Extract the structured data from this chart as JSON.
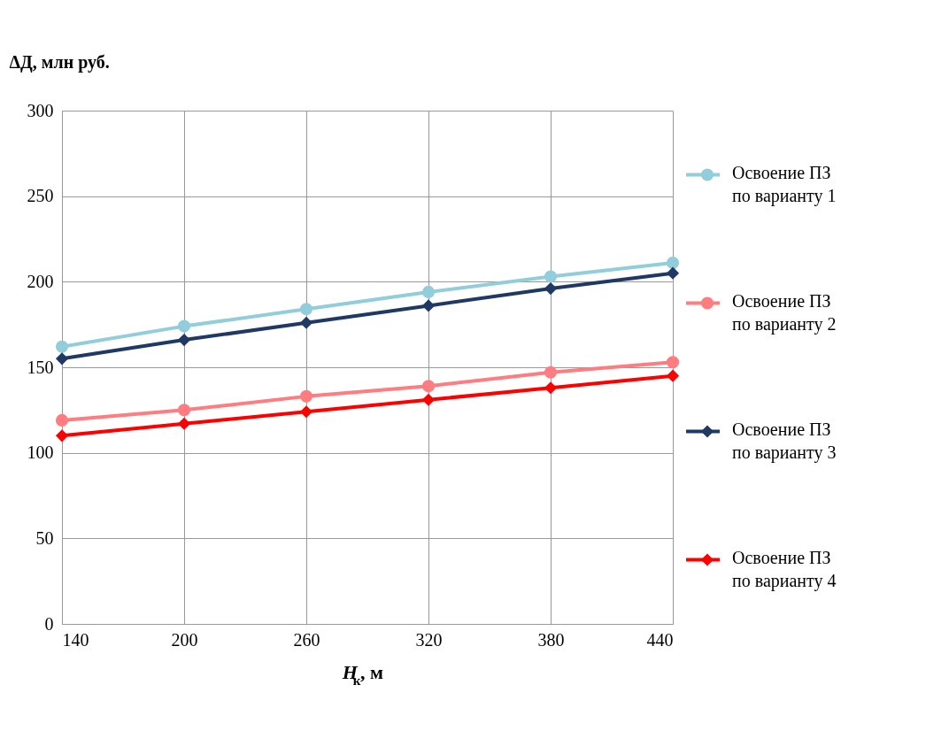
{
  "chart_data": {
    "type": "line",
    "ylabel": "ΔД, млн руб.",
    "xlabel": "H$_{к}$, м",
    "x": [
      140,
      200,
      260,
      320,
      380,
      440
    ],
    "xlim": [
      140,
      440
    ],
    "xticks": [
      140,
      200,
      260,
      320,
      380,
      440
    ],
    "ylim": [
      0,
      300
    ],
    "yticks": [
      0,
      50,
      100,
      150,
      200,
      250,
      300
    ],
    "grid": true,
    "legend": "right",
    "series": [
      {
        "name": "Освоение ПЗ\nпо варианту 1",
        "color": "#92cddc",
        "marker": "circle",
        "values": [
          162,
          174,
          184,
          194,
          203,
          211
        ]
      },
      {
        "name": "Освоение ПЗ\nпо варианту 2",
        "color": "#ff7c80",
        "marker": "circle",
        "values": [
          119,
          125,
          133,
          139,
          147,
          153
        ]
      },
      {
        "name": "Освоение ПЗ\nпо варианту 3",
        "color": "#1f3864",
        "marker": "diamond",
        "values": [
          155,
          166,
          176,
          186,
          196,
          205
        ]
      },
      {
        "name": "Освоение ПЗ\nпо варианту 4",
        "color": "#ff0000",
        "marker": "diamond",
        "values": [
          110,
          117,
          124,
          131,
          138,
          145
        ]
      }
    ]
  }
}
